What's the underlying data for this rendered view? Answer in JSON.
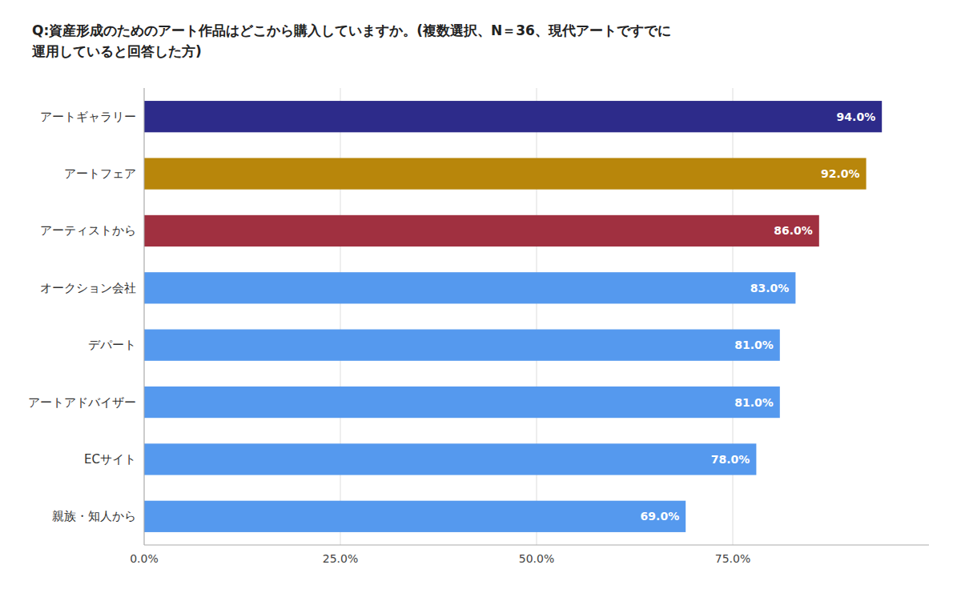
{
  "chart_data": {
    "type": "bar",
    "orientation": "horizontal",
    "title": "Q:資産形成のためのアート作品はどこから購入していますか。(複数選択、N＝36、現代アートですでに\n運用していると回答した方)",
    "categories": [
      "アートギャラリー",
      "アートフェア",
      "アーティストから",
      "オークション会社",
      "デパート",
      "アートアドバイザー",
      "ECサイト",
      "親族・知人から"
    ],
    "values": [
      94.0,
      92.0,
      86.0,
      83.0,
      81.0,
      81.0,
      78.0,
      69.0
    ],
    "value_labels": [
      "94.0%",
      "92.0%",
      "86.0%",
      "83.0%",
      "81.0%",
      "81.0%",
      "78.0%",
      "69.0%"
    ],
    "colors": [
      "#2d2b8a",
      "#b8860b",
      "#a03040",
      "#5599ee",
      "#5599ee",
      "#5599ee",
      "#5599ee",
      "#5599ee"
    ],
    "xlim": [
      0,
      100
    ],
    "xticks": [
      {
        "value": 0,
        "label": "0.0%"
      },
      {
        "value": 25.0,
        "label": "25.0%"
      },
      {
        "value": 50.0,
        "label": "50.0%"
      },
      {
        "value": 75.0,
        "label": "75.0%"
      }
    ],
    "grid": true,
    "data_labels": true
  }
}
